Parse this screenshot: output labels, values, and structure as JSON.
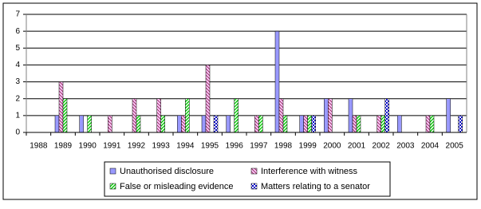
{
  "chart_data": {
    "type": "bar",
    "categories": [
      "1988",
      "1989",
      "1990",
      "1991",
      "1992",
      "1993",
      "1994",
      "1995",
      "1996",
      "1997",
      "1998",
      "1999",
      "2000",
      "2001",
      "2002",
      "2003",
      "2004",
      "2005"
    ],
    "series": [
      {
        "name": "Unauthorised disclosure",
        "color": "#9999ff",
        "values": [
          0,
          1,
          1,
          0,
          0,
          0,
          1,
          1,
          1,
          0,
          6,
          1,
          2,
          2,
          0,
          1,
          0,
          2
        ]
      },
      {
        "name": "Interference with witness",
        "color": "#993366",
        "values": [
          0,
          3,
          0,
          1,
          2,
          2,
          1,
          4,
          0,
          1,
          2,
          1,
          2,
          1,
          1,
          0,
          1,
          0
        ]
      },
      {
        "name": "False or misleading evidence",
        "color": "#00cc00",
        "values": [
          0,
          2,
          1,
          0,
          1,
          1,
          2,
          0,
          2,
          1,
          1,
          1,
          0,
          1,
          1,
          0,
          1,
          0
        ]
      },
      {
        "name": "Matters relating to a senator",
        "color": "#0000cc",
        "values": [
          0,
          0,
          0,
          0,
          0,
          0,
          0,
          1,
          0,
          0,
          0,
          1,
          0,
          0,
          2,
          0,
          0,
          1
        ]
      }
    ],
    "ylim": [
      0,
      7
    ],
    "yticks": [
      0,
      1,
      2,
      3,
      4,
      5,
      6,
      7
    ],
    "grid": true
  }
}
